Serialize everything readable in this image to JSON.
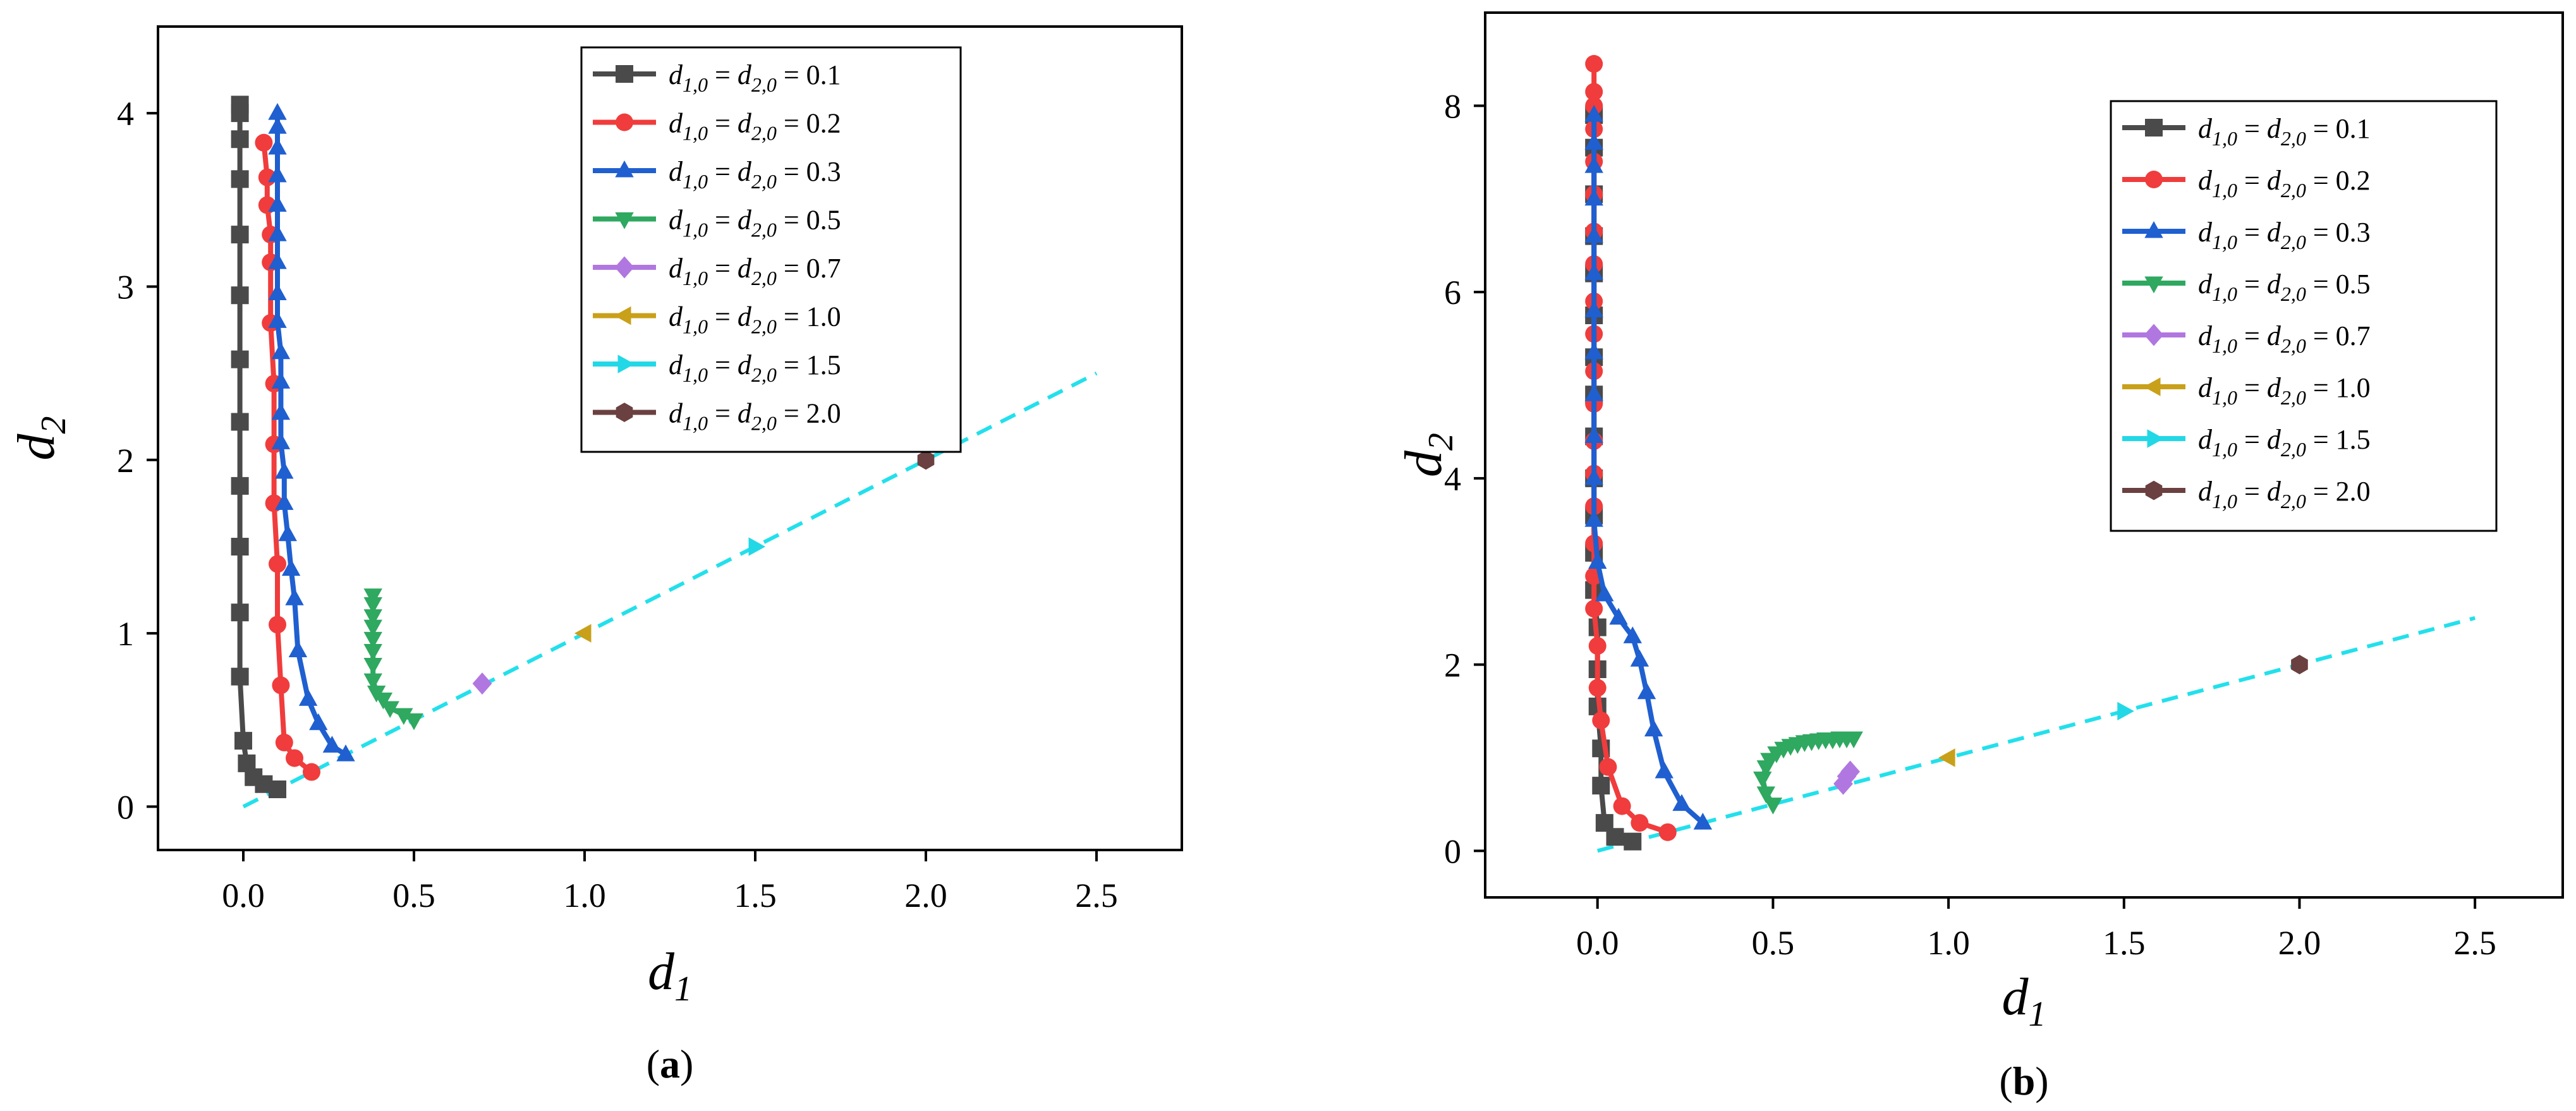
{
  "chart_data": [
    {
      "id": "a",
      "type": "line",
      "panel_label": "a",
      "xlabel": "d",
      "xlabel_sub": "1",
      "ylabel": "d",
      "ylabel_sub": "2",
      "xlim": [
        -0.25,
        2.75
      ],
      "ylim": [
        -0.25,
        4.5
      ],
      "xticks": [
        0.0,
        0.5,
        1.0,
        1.5,
        2.0,
        2.5
      ],
      "xtick_labels": [
        "0.0",
        "0.5",
        "1.0",
        "1.5",
        "2.0",
        "2.5"
      ],
      "yticks": [
        0,
        1,
        2,
        3,
        4
      ],
      "ytick_labels": [
        "0",
        "1",
        "2",
        "3",
        "4"
      ],
      "legend": {
        "position": "top-center",
        "items": [
          {
            "sub": "1,0",
            "sub2": "2,0",
            "value": "0.1"
          },
          {
            "sub": "1,0",
            "sub2": "2,0",
            "value": "0.2"
          },
          {
            "sub": "1,0",
            "sub2": "2,0",
            "value": "0.3"
          },
          {
            "sub": "1,0",
            "sub2": "2,0",
            "value": "0.5"
          },
          {
            "sub": "1,0",
            "sub2": "2,0",
            "value": "0.7"
          },
          {
            "sub": "1,0",
            "sub2": "2,0",
            "value": "1.0"
          },
          {
            "sub": "1,0",
            "sub2": "2,0",
            "value": "1.5"
          },
          {
            "sub": "1,0",
            "sub2": "2,0",
            "value": "2.0"
          }
        ]
      },
      "equilibrium_line": {
        "x": [
          0,
          2.5
        ],
        "y": [
          0,
          2.5
        ],
        "color": "#22e0ec"
      },
      "series": [
        {
          "name": "d1,0 = d2,0 = 0.1",
          "color": "#4a4a4a",
          "marker": "square",
          "x": [
            0.1,
            0.06,
            0.03,
            0.01,
            0.0,
            -0.01,
            -0.01,
            -0.01,
            -0.01,
            -0.01,
            -0.01,
            -0.01,
            -0.01,
            -0.01,
            -0.01,
            -0.01,
            -0.01
          ],
          "y": [
            0.1,
            0.13,
            0.17,
            0.25,
            0.38,
            0.75,
            1.12,
            1.5,
            1.85,
            2.22,
            2.58,
            2.95,
            3.3,
            3.62,
            3.85,
            4.0,
            4.05
          ]
        },
        {
          "name": "d1,0 = d2,0 = 0.2",
          "color": "#f03c3c",
          "marker": "circle",
          "x": [
            0.2,
            0.15,
            0.12,
            0.11,
            0.1,
            0.1,
            0.09,
            0.09,
            0.09,
            0.08,
            0.08,
            0.08,
            0.07,
            0.07,
            0.06
          ],
          "y": [
            0.2,
            0.28,
            0.37,
            0.7,
            1.05,
            1.4,
            1.75,
            2.09,
            2.44,
            2.79,
            3.14,
            3.3,
            3.47,
            3.63,
            3.83
          ]
        },
        {
          "name": "d1,0 = d2,0 = 0.3",
          "color": "#1f5fd0",
          "marker": "triangle-up",
          "x": [
            0.3,
            0.26,
            0.22,
            0.19,
            0.16,
            0.15,
            0.14,
            0.13,
            0.12,
            0.12,
            0.11,
            0.11,
            0.11,
            0.11,
            0.1,
            0.1,
            0.1,
            0.1,
            0.1,
            0.1,
            0.1,
            0.1,
            0.1
          ],
          "y": [
            0.3,
            0.35,
            0.48,
            0.62,
            0.9,
            1.2,
            1.37,
            1.57,
            1.75,
            1.93,
            2.1,
            2.27,
            2.45,
            2.62,
            2.8,
            2.96,
            3.14,
            3.3,
            3.47,
            3.64,
            3.8,
            3.92,
            4.0
          ]
        },
        {
          "name": "d1,0 = d2,0 = 0.5",
          "color": "#2fa860",
          "marker": "triangle-down",
          "x": [
            0.5,
            0.47,
            0.43,
            0.41,
            0.39,
            0.38,
            0.38,
            0.38,
            0.38,
            0.38,
            0.38,
            0.38,
            0.38
          ],
          "y": [
            0.5,
            0.53,
            0.57,
            0.62,
            0.66,
            0.73,
            0.82,
            0.9,
            0.97,
            1.04,
            1.1,
            1.17,
            1.22
          ]
        },
        {
          "name": "d1,0 = d2,0 = 0.7",
          "color": "#b177e0",
          "marker": "diamond",
          "x": [
            0.7
          ],
          "y": [
            0.71
          ]
        },
        {
          "name": "d1,0 = d2,0 = 1.0",
          "color": "#c9a019",
          "marker": "triangle-left",
          "x": [
            1.0
          ],
          "y": [
            1.0
          ]
        },
        {
          "name": "d1,0 = d2,0 = 1.5",
          "color": "#22d8e6",
          "marker": "triangle-right",
          "x": [
            1.5
          ],
          "y": [
            1.5
          ]
        },
        {
          "name": "d1,0 = d2,0 = 2.0",
          "color": "#6b4040",
          "marker": "hexagon",
          "x": [
            2.0
          ],
          "y": [
            2.0
          ]
        }
      ]
    },
    {
      "id": "b",
      "type": "line",
      "panel_label": "b",
      "xlabel": "d",
      "xlabel_sub": "1",
      "ylabel": "d",
      "ylabel_sub": "2",
      "xlim": [
        -0.32,
        2.75
      ],
      "ylim": [
        -0.5,
        9.0
      ],
      "xticks": [
        0.0,
        0.5,
        1.0,
        1.5,
        2.0,
        2.5
      ],
      "xtick_labels": [
        "0.0",
        "0.5",
        "1.0",
        "1.5",
        "2.0",
        "2.5"
      ],
      "yticks": [
        0,
        2,
        4,
        6,
        8
      ],
      "ytick_labels": [
        "0",
        "2",
        "4",
        "6",
        "8"
      ],
      "legend": {
        "position": "top-right",
        "items": [
          {
            "sub": "1,0",
            "sub2": "2,0",
            "value": "0.1"
          },
          {
            "sub": "1,0",
            "sub2": "2,0",
            "value": "0.2"
          },
          {
            "sub": "1,0",
            "sub2": "2,0",
            "value": "0.3"
          },
          {
            "sub": "1,0",
            "sub2": "2,0",
            "value": "0.5"
          },
          {
            "sub": "1,0",
            "sub2": "2,0",
            "value": "0.7"
          },
          {
            "sub": "1,0",
            "sub2": "2,0",
            "value": "1.0"
          },
          {
            "sub": "1,0",
            "sub2": "2,0",
            "value": "1.5"
          },
          {
            "sub": "1,0",
            "sub2": "2,0",
            "value": "2.0"
          }
        ]
      },
      "equilibrium_line": {
        "x": [
          0,
          2.5
        ],
        "y": [
          0,
          2.5
        ],
        "color": "#22e0ec"
      },
      "series": [
        {
          "name": "d1,0 = d2,0 = 0.1",
          "color": "#4a4a4a",
          "marker": "square",
          "x": [
            0.1,
            0.05,
            0.02,
            0.01,
            0.01,
            0.0,
            0.0,
            0.0,
            -0.01,
            -0.01,
            -0.01,
            -0.01,
            -0.01,
            -0.01,
            -0.01,
            -0.01,
            -0.01,
            -0.01,
            -0.01,
            -0.01,
            -0.01
          ],
          "y": [
            0.1,
            0.15,
            0.3,
            0.7,
            1.1,
            1.55,
            1.95,
            2.4,
            2.8,
            3.2,
            3.6,
            4.0,
            4.45,
            4.9,
            5.3,
            5.75,
            6.2,
            6.6,
            7.05,
            7.55,
            7.9
          ]
        },
        {
          "name": "d1,0 = d2,0 = 0.2",
          "color": "#f03c3c",
          "marker": "circle",
          "x": [
            0.2,
            0.12,
            0.07,
            0.03,
            0.01,
            0.0,
            0.0,
            -0.01,
            -0.01,
            -0.01,
            -0.01,
            -0.01,
            -0.01,
            -0.01,
            -0.01,
            -0.01,
            -0.01,
            -0.01,
            -0.01,
            -0.01,
            -0.01,
            -0.01,
            -0.01,
            -0.01,
            -0.01
          ],
          "y": [
            0.2,
            0.3,
            0.48,
            0.9,
            1.4,
            1.75,
            2.2,
            2.6,
            2.95,
            3.3,
            3.7,
            4.05,
            4.4,
            4.8,
            5.15,
            5.55,
            5.9,
            6.3,
            6.65,
            7.05,
            7.4,
            7.75,
            8.0,
            8.15,
            8.45
          ]
        },
        {
          "name": "d1,0 = d2,0 = 0.3",
          "color": "#1f5fd0",
          "marker": "triangle-up",
          "x": [
            0.3,
            0.24,
            0.19,
            0.16,
            0.14,
            0.12,
            0.1,
            0.06,
            0.02,
            0.0,
            -0.01,
            -0.01,
            -0.01,
            -0.01,
            -0.01,
            -0.01,
            -0.01,
            -0.01,
            -0.01,
            -0.01,
            -0.01,
            -0.01
          ],
          "y": [
            0.3,
            0.5,
            0.85,
            1.3,
            1.7,
            2.05,
            2.3,
            2.5,
            2.75,
            3.1,
            3.55,
            4.0,
            4.45,
            4.9,
            5.35,
            5.8,
            6.2,
            6.6,
            7.0,
            7.35,
            7.6,
            7.9
          ]
        },
        {
          "name": "d1,0 = d2,0 = 0.5",
          "color": "#2fa860",
          "marker": "triangle-down",
          "x": [
            0.5,
            0.48,
            0.47,
            0.48,
            0.49,
            0.51,
            0.53,
            0.55,
            0.57,
            0.59,
            0.61,
            0.63,
            0.65,
            0.67,
            0.69,
            0.71,
            0.73
          ],
          "y": [
            0.5,
            0.62,
            0.78,
            0.9,
            0.98,
            1.05,
            1.1,
            1.13,
            1.15,
            1.17,
            1.18,
            1.19,
            1.2,
            1.2,
            1.21,
            1.21,
            1.21
          ]
        },
        {
          "name": "d1,0 = d2,0 = 0.7",
          "color": "#b177e0",
          "marker": "diamond",
          "x": [
            0.7,
            0.71,
            0.72
          ],
          "y": [
            0.72,
            0.8,
            0.85
          ]
        },
        {
          "name": "d1,0 = d2,0 = 1.0",
          "color": "#c9a019",
          "marker": "triangle-left",
          "x": [
            1.0
          ],
          "y": [
            1.0
          ]
        },
        {
          "name": "d1,0 = d2,0 = 1.5",
          "color": "#22d8e6",
          "marker": "triangle-right",
          "x": [
            1.5
          ],
          "y": [
            1.5
          ]
        },
        {
          "name": "d1,0 = d2,0 = 2.0",
          "color": "#6b4040",
          "marker": "hexagon",
          "x": [
            2.0
          ],
          "y": [
            2.0
          ]
        }
      ]
    }
  ]
}
